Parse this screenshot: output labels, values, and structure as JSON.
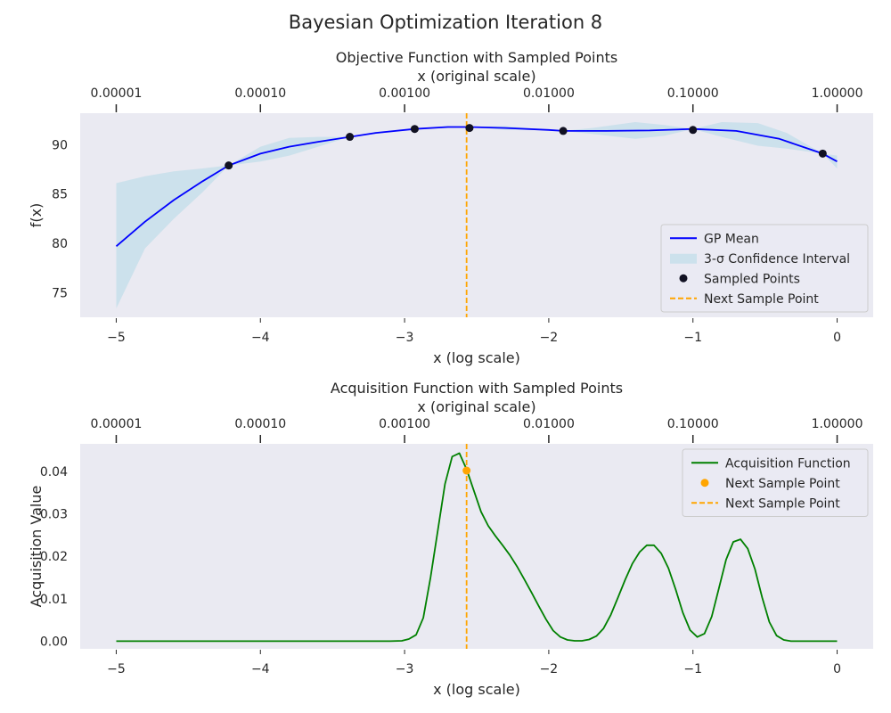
{
  "figure": {
    "suptitle": "Bayesian Optimization Iteration 8"
  },
  "chart_data": [
    {
      "type": "line",
      "title": "Objective Function with Sampled Points",
      "xlabel": "x (log scale)",
      "x2label": "x (original scale)",
      "ylabel": "f(x)",
      "xlim": [
        -5.25,
        0.25
      ],
      "ylim": [
        72.5,
        93.2
      ],
      "grid": false,
      "legend_position": "lower-right",
      "xticks": [
        -5,
        -4,
        -3,
        -2,
        -1,
        0
      ],
      "xtick_labels": [
        "−5",
        "−4",
        "−3",
        "−2",
        "−1",
        "0"
      ],
      "x2ticks": [
        -5,
        -4,
        -3,
        -2,
        -1,
        0
      ],
      "x2tick_labels": [
        "0.00001",
        "0.00010",
        "0.00100",
        "0.01000",
        "0.10000",
        "1.00000"
      ],
      "yticks": [
        75,
        80,
        85,
        90
      ],
      "ytick_labels": [
        "75",
        "80",
        "85",
        "90"
      ],
      "series": [
        {
          "name": "GP Mean",
          "kind": "line",
          "color": "#0000ff",
          "x": [
            -5,
            -4.8,
            -4.6,
            -4.4,
            -4.22,
            -4,
            -3.8,
            -3.6,
            -3.38,
            -3.2,
            -2.93,
            -2.7,
            -2.55,
            -2.3,
            -2,
            -1.9,
            -1.6,
            -1.3,
            -1.0,
            -0.7,
            -0.4,
            -0.1,
            0
          ],
          "y": [
            79.7,
            82.2,
            84.4,
            86.3,
            87.9,
            89.1,
            89.8,
            90.3,
            90.8,
            91.2,
            91.6,
            91.8,
            91.8,
            91.7,
            91.5,
            91.4,
            91.4,
            91.45,
            91.6,
            91.4,
            90.6,
            89.1,
            88.3
          ]
        },
        {
          "name": "3-σ Confidence Interval",
          "kind": "band",
          "color": "#add8e6",
          "x": [
            -5,
            -4.8,
            -4.6,
            -4.4,
            -4.22,
            -4,
            -3.8,
            -3.6,
            -3.38,
            -3.2,
            -2.93,
            -2.7,
            -2.55,
            -2.3,
            -2,
            -1.9,
            -1.7,
            -1.4,
            -1.2,
            -1.0,
            -0.8,
            -0.55,
            -0.35,
            -0.1,
            0
          ],
          "lower": [
            73.4,
            79.5,
            82.5,
            85.2,
            87.9,
            88.3,
            88.9,
            89.8,
            90.8,
            91.1,
            91.6,
            91.7,
            91.8,
            91.5,
            91.5,
            91.4,
            91.1,
            90.6,
            90.9,
            91.6,
            90.8,
            89.9,
            89.6,
            89.1,
            87.6
          ],
          "upper": [
            86.1,
            86.8,
            87.3,
            87.6,
            87.9,
            89.8,
            90.7,
            90.8,
            90.8,
            91.3,
            91.6,
            91.9,
            91.8,
            91.9,
            91.5,
            91.4,
            91.7,
            92.3,
            92.0,
            91.6,
            92.3,
            92.2,
            91.2,
            89.1,
            88.9
          ]
        },
        {
          "name": "Sampled Points",
          "kind": "scatter",
          "color": "#111122",
          "x": [
            -4.22,
            -3.38,
            -2.93,
            -2.55,
            -1.9,
            -1.0,
            -0.1
          ],
          "y": [
            87.9,
            90.8,
            91.6,
            91.7,
            91.4,
            91.5,
            89.1
          ]
        },
        {
          "name": "Next Sample Point",
          "kind": "vline",
          "color": "#ffa500",
          "x": -2.57
        }
      ]
    },
    {
      "type": "line",
      "title": "Acquisition Function with Sampled Points",
      "xlabel": "x (log scale)",
      "x2label": "x (original scale)",
      "ylabel": "Acquisition Value",
      "xlim": [
        -5.25,
        0.25
      ],
      "ylim": [
        -0.0018,
        0.0465
      ],
      "grid": false,
      "legend_position": "top-right",
      "xticks": [
        -5,
        -4,
        -3,
        -2,
        -1,
        0
      ],
      "xtick_labels": [
        "−5",
        "−4",
        "−3",
        "−2",
        "−1",
        "0"
      ],
      "x2ticks": [
        -5,
        -4,
        -3,
        -2,
        -1,
        0
      ],
      "x2tick_labels": [
        "0.00001",
        "0.00010",
        "0.00100",
        "0.01000",
        "0.10000",
        "1.00000"
      ],
      "yticks": [
        0,
        0.01,
        0.02,
        0.03,
        0.04
      ],
      "ytick_labels": [
        "0.00",
        "0.01",
        "0.02",
        "0.03",
        "0.04"
      ],
      "series": [
        {
          "name": "Acquisition Function",
          "kind": "line",
          "color": "#008000",
          "x": [
            -5,
            -3.1,
            -3.02,
            -2.97,
            -2.92,
            -2.87,
            -2.82,
            -2.77,
            -2.72,
            -2.67,
            -2.62,
            -2.57,
            -2.52,
            -2.47,
            -2.42,
            -2.37,
            -2.32,
            -2.27,
            -2.22,
            -2.17,
            -2.12,
            -2.07,
            -2.02,
            -1.97,
            -1.92,
            -1.87,
            -1.82,
            -1.77,
            -1.72,
            -1.67,
            -1.62,
            -1.57,
            -1.52,
            -1.47,
            -1.42,
            -1.37,
            -1.32,
            -1.27,
            -1.22,
            -1.17,
            -1.12,
            -1.07,
            -1.02,
            -0.97,
            -0.92,
            -0.87,
            -0.82,
            -0.77,
            -0.72,
            -0.67,
            -0.62,
            -0.57,
            -0.52,
            -0.47,
            -0.42,
            -0.37,
            -0.32,
            0
          ],
          "y": [
            0,
            0,
            0.0001,
            0.0005,
            0.0015,
            0.0055,
            0.015,
            0.026,
            0.037,
            0.0435,
            0.0443,
            0.0405,
            0.0355,
            0.0305,
            0.0272,
            0.0248,
            0.0226,
            0.0203,
            0.0176,
            0.0146,
            0.0115,
            0.0083,
            0.0052,
            0.0025,
            0.001,
            0.0003,
            0.0001,
            0.0001,
            0.0004,
            0.0012,
            0.003,
            0.0062,
            0.0103,
            0.0145,
            0.0183,
            0.021,
            0.0226,
            0.0226,
            0.0207,
            0.0172,
            0.0122,
            0.0067,
            0.0026,
            0.001,
            0.0018,
            0.0058,
            0.0125,
            0.0192,
            0.0234,
            0.024,
            0.0218,
            0.017,
            0.0103,
            0.0045,
            0.0013,
            0.0003,
            0,
            0
          ]
        },
        {
          "name": "Next Sample Point",
          "kind": "scatter",
          "color": "#ffa500",
          "x": [
            -2.57
          ],
          "y": [
            0.0402
          ]
        },
        {
          "name": "Next Sample Point",
          "kind": "vline",
          "color": "#ffa500",
          "x": -2.57
        }
      ]
    }
  ]
}
